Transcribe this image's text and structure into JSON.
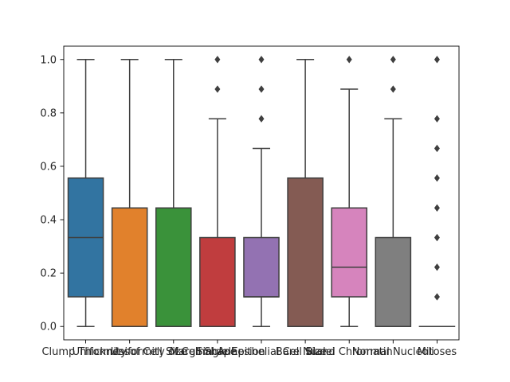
{
  "chart_data": {
    "type": "boxplot",
    "title": "",
    "xlabel": "",
    "ylabel": "",
    "ylim": [
      -0.05,
      1.05
    ],
    "yticks": [
      0.0,
      0.2,
      0.4,
      0.6,
      0.8,
      1.0
    ],
    "ytick_labels": [
      "0.0",
      "0.2",
      "0.4",
      "0.6",
      "0.8",
      "1.0"
    ],
    "grid": false,
    "categories": [
      "Clump Thickness",
      "Uniformity of Cell Size",
      "Uniformity of Cell Shape",
      "Marginal Adhesion",
      "Single Epithelial Cell Size",
      "Bare Nuclei",
      "Bland Chromatin",
      "Normal Nucleoli",
      "Mitoses"
    ],
    "colors": [
      "#3274a1",
      "#e1812c",
      "#3a923a",
      "#c03d3e",
      "#9372b2",
      "#845b53",
      "#d684bd",
      "#7f7f7f",
      "#a9aa35"
    ],
    "boxes": [
      {
        "whisker_low": 0.0,
        "q1": 0.111,
        "median": 0.333,
        "q3": 0.556,
        "whisker_high": 1.0,
        "outliers": []
      },
      {
        "whisker_low": 0.0,
        "q1": 0.0,
        "median": 0.0,
        "q3": 0.444,
        "whisker_high": 1.0,
        "outliers": []
      },
      {
        "whisker_low": 0.0,
        "q1": 0.0,
        "median": 0.0,
        "q3": 0.444,
        "whisker_high": 1.0,
        "outliers": []
      },
      {
        "whisker_low": 0.0,
        "q1": 0.0,
        "median": 0.0,
        "q3": 0.333,
        "whisker_high": 0.778,
        "outliers": [
          0.889,
          1.0
        ]
      },
      {
        "whisker_low": 0.0,
        "q1": 0.111,
        "median": 0.111,
        "q3": 0.333,
        "whisker_high": 0.667,
        "outliers": [
          0.778,
          0.889,
          1.0
        ]
      },
      {
        "whisker_low": 0.0,
        "q1": 0.0,
        "median": 0.0,
        "q3": 0.556,
        "whisker_high": 1.0,
        "outliers": []
      },
      {
        "whisker_low": 0.0,
        "q1": 0.111,
        "median": 0.222,
        "q3": 0.444,
        "whisker_high": 0.889,
        "outliers": [
          1.0
        ]
      },
      {
        "whisker_low": 0.0,
        "q1": 0.0,
        "median": 0.0,
        "q3": 0.333,
        "whisker_high": 0.778,
        "outliers": [
          0.889,
          1.0
        ]
      },
      {
        "whisker_low": 0.0,
        "q1": 0.0,
        "median": 0.0,
        "q3": 0.0,
        "whisker_high": 0.0,
        "outliers": [
          0.111,
          0.222,
          0.333,
          0.444,
          0.556,
          0.667,
          0.778,
          1.0
        ]
      }
    ]
  }
}
